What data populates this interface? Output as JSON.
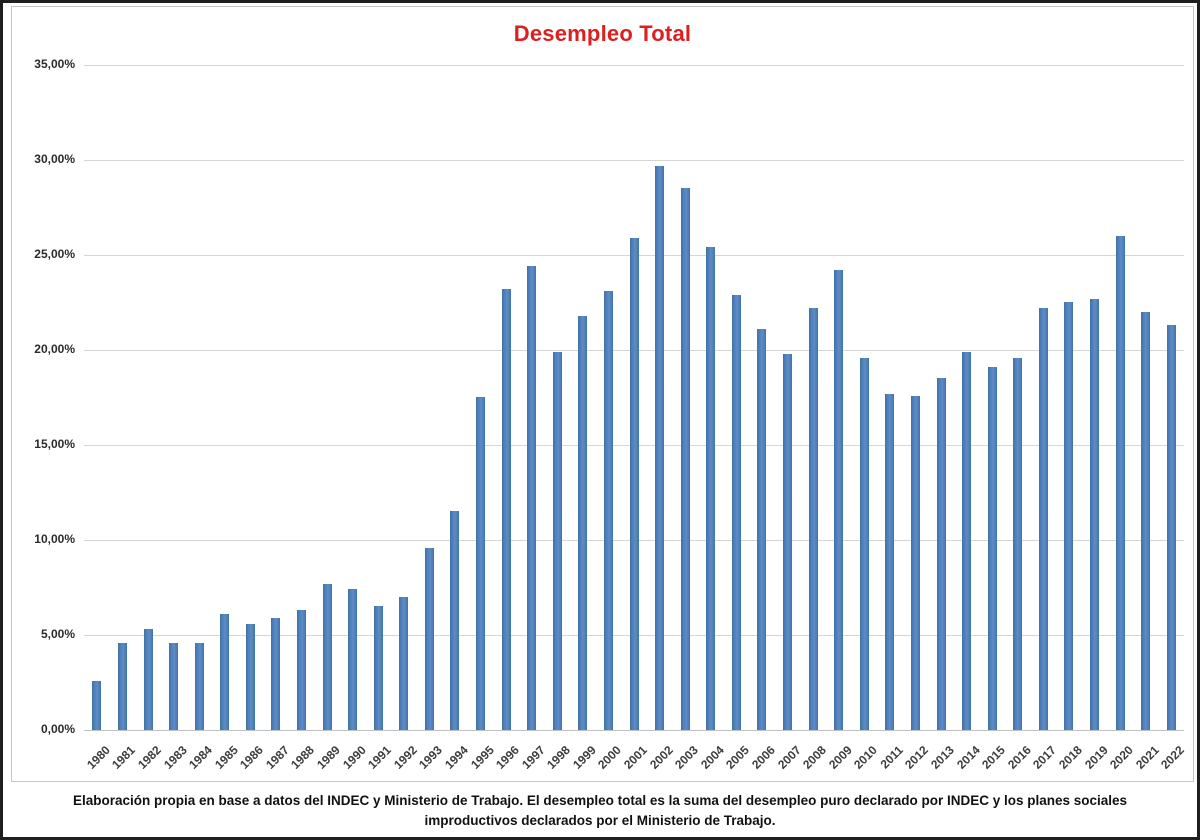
{
  "chart_data": {
    "type": "bar",
    "title": "Desempleo Total",
    "categories": [
      "1980",
      "1981",
      "1982",
      "1983",
      "1984",
      "1985",
      "1986",
      "1987",
      "1988",
      "1989",
      "1990",
      "1991",
      "1992",
      "1993",
      "1994",
      "1995",
      "1996",
      "1997",
      "1998",
      "1999",
      "2000",
      "2001",
      "2002",
      "2003",
      "2004",
      "2005",
      "2006",
      "2007",
      "2008",
      "2009",
      "2010",
      "2011",
      "2012",
      "2013",
      "2014",
      "2015",
      "2016",
      "2017",
      "2018",
      "2019",
      "2020",
      "2021",
      "2022"
    ],
    "values": [
      2.6,
      4.6,
      5.3,
      4.6,
      4.6,
      6.1,
      5.6,
      5.9,
      6.3,
      7.7,
      7.4,
      6.5,
      7.0,
      9.6,
      11.5,
      17.5,
      23.2,
      24.4,
      19.9,
      21.8,
      23.1,
      25.9,
      29.7,
      28.5,
      25.4,
      22.9,
      21.1,
      19.8,
      22.2,
      24.2,
      19.6,
      17.7,
      17.6,
      18.5,
      19.9,
      19.1,
      19.6,
      22.2,
      22.5,
      22.7,
      26.0,
      22.0,
      21.3
    ],
    "xlabel": "",
    "ylabel": "",
    "ylim": [
      0,
      35
    ],
    "y_tick_step": 5,
    "y_tick_labels": [
      "35,00%",
      "30,00%",
      "25,00%",
      "20,00%",
      "15,00%",
      "10,00%",
      "5,00%",
      "0,00%"
    ],
    "grid": true,
    "legend": false,
    "bar_color": "#4f81bd",
    "title_color": "#dd1f1f"
  },
  "caption": {
    "line1": "Elaboración propia en base a datos del INDEC y Ministerio de Trabajo. El desempleo total es la suma del desempleo puro declarado por INDEC y los planes sociales",
    "line2": "improductivos declarados por el Ministerio de Trabajo."
  }
}
